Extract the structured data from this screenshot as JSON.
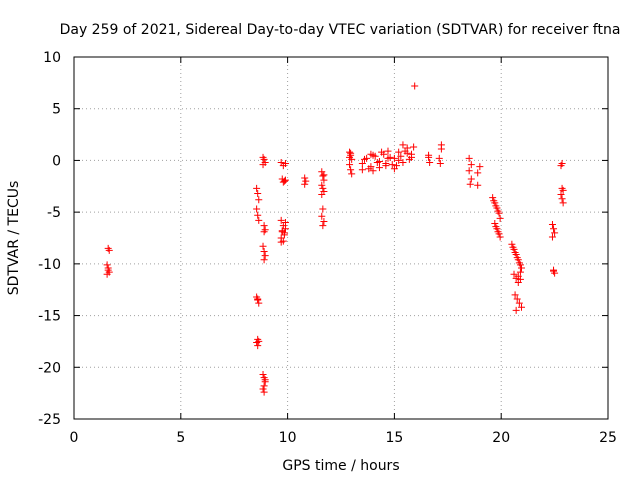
{
  "chart_data": {
    "type": "scatter",
    "title": "Day 259 of 2021, Sidereal Day-to-day VTEC variation (SDTVAR) for receiver ftna",
    "xlabel": "GPS time / hours",
    "ylabel": "SDTVAR / TECUs",
    "xlim": [
      0,
      25
    ],
    "ylim": [
      -25,
      10
    ],
    "xticks": [
      "0",
      "5",
      "10",
      "15",
      "20",
      "25"
    ],
    "yticks": [
      "10",
      "5",
      "0",
      "-5",
      "-10",
      "-15",
      "-20",
      "-25"
    ],
    "grid": true,
    "marker": "+",
    "series_color": "#ff0000",
    "series": [
      {
        "name": "SDTVAR",
        "x": [
          1.6,
          1.65,
          1.55,
          1.6,
          1.65,
          1.55,
          1.6,
          8.55,
          8.6,
          8.65,
          8.55,
          8.6,
          8.65,
          8.55,
          8.6,
          8.65,
          8.6,
          8.55,
          8.6,
          8.65,
          8.6,
          8.85,
          8.9,
          8.95,
          8.85,
          8.9,
          8.95,
          8.9,
          8.85,
          8.9,
          8.95,
          8.9,
          8.85,
          8.9,
          8.95,
          8.9,
          8.85,
          8.9,
          8.95,
          9.7,
          9.8,
          9.9,
          9.75,
          9.85,
          9.7,
          9.8,
          9.9,
          9.75,
          9.85,
          9.7,
          9.8,
          9.9,
          9.75,
          9.85,
          9.8,
          9.7,
          9.9,
          10.8,
          10.85,
          10.8,
          11.6,
          11.65,
          11.7,
          11.6,
          11.65,
          11.7,
          11.65,
          11.6,
          11.7,
          11.65,
          11.6,
          11.7,
          12.9,
          12.95,
          13.0,
          12.9,
          12.95,
          13.0,
          12.95,
          12.9,
          13.5,
          13.7,
          13.9,
          14.1,
          14.3,
          14.5,
          14.7,
          14.9,
          13.6,
          13.8,
          14.0,
          14.2,
          14.4,
          14.6,
          14.8,
          13.5,
          13.9,
          14.3,
          14.7,
          14.0,
          14.6,
          15.0,
          15.2,
          15.4,
          15.6,
          15.8,
          15.1,
          15.3,
          15.5,
          15.7,
          15.9,
          15.0,
          15.4,
          15.8,
          15.2,
          15.6,
          15.95,
          16.6,
          16.65,
          16.6,
          17.1,
          17.2,
          17.15,
          17.2,
          18.5,
          18.6,
          18.5,
          18.6,
          18.55,
          18.9,
          19.0,
          18.9,
          19.6,
          19.7,
          19.8,
          19.9,
          19.65,
          19.75,
          19.85,
          19.95,
          19.7,
          19.8,
          19.9,
          19.75,
          19.85,
          19.95,
          20.5,
          20.6,
          20.7,
          20.8,
          20.9,
          20.55,
          20.65,
          20.75,
          20.85,
          20.95,
          20.6,
          20.7,
          20.8,
          20.9,
          20.65,
          20.75,
          20.85,
          20.95,
          20.7,
          20.8,
          20.9,
          22.4,
          22.45,
          22.5,
          22.4,
          22.45,
          22.5,
          22.45,
          22.8,
          22.85,
          22.9,
          22.8,
          22.85,
          22.9,
          22.85
        ],
        "y": [
          -8.5,
          -8.7,
          -10.1,
          -10.4,
          -10.8,
          -11.0,
          -10.6,
          -2.7,
          -3.2,
          -3.8,
          -4.7,
          -5.3,
          -5.8,
          -13.2,
          -13.5,
          -13.8,
          -17.3,
          -17.6,
          -17.9,
          -17.5,
          -13.4,
          0.3,
          0.1,
          -0.2,
          -0.4,
          -6.3,
          -6.7,
          -6.9,
          -8.3,
          -8.8,
          -9.2,
          -9.6,
          -20.7,
          -21.0,
          -21.4,
          -21.8,
          -22.1,
          -22.4,
          -21.2,
          -0.2,
          -0.5,
          -0.3,
          -1.8,
          -2.0,
          -5.8,
          -6.3,
          -6.6,
          -6.9,
          -7.2,
          -7.5,
          -7.8,
          -6.0,
          -6.8,
          -7.0,
          -2.1,
          -7.9,
          -1.9,
          -1.7,
          -2.0,
          -2.3,
          -1.1,
          -1.5,
          -1.9,
          -2.4,
          -2.7,
          -3.0,
          -4.7,
          -5.4,
          -5.9,
          -6.3,
          -3.3,
          -1.4,
          0.8,
          0.5,
          0.1,
          -0.4,
          -0.9,
          -1.3,
          0.7,
          0.3,
          -0.3,
          0.2,
          -0.6,
          0.4,
          -0.1,
          0.6,
          0.2,
          -0.4,
          0.1,
          -0.8,
          0.5,
          -0.2,
          0.8,
          -0.5,
          0.3,
          -0.9,
          0.6,
          -0.7,
          0.9,
          -1.0,
          -0.3,
          0.2,
          0.8,
          -0.2,
          1.2,
          0.6,
          -0.5,
          0.4,
          0.9,
          0.1,
          1.3,
          -0.8,
          1.5,
          0.3,
          0.0,
          0.7,
          7.2,
          0.3,
          -0.2,
          0.5,
          0.2,
          1.1,
          -0.3,
          1.5,
          0.2,
          -0.4,
          -1.0,
          -1.8,
          -2.3,
          -1.2,
          -0.6,
          -2.4,
          -3.6,
          -4.1,
          -4.6,
          -5.1,
          -3.9,
          -4.4,
          -4.9,
          -5.6,
          -6.1,
          -6.6,
          -7.1,
          -6.4,
          -6.9,
          -7.4,
          -8.1,
          -8.6,
          -9.1,
          -9.6,
          -10.1,
          -8.4,
          -8.9,
          -9.4,
          -9.9,
          -10.4,
          -11.0,
          -11.4,
          -11.8,
          -11.5,
          -13.0,
          -13.4,
          -13.8,
          -14.2,
          -14.5,
          -11.2,
          -10.8,
          -6.2,
          -6.6,
          -7.0,
          -7.4,
          -10.6,
          -10.9,
          -10.7,
          -0.5,
          -0.3,
          -2.9,
          -3.3,
          -3.7,
          -4.1,
          -2.7
        ]
      }
    ]
  }
}
